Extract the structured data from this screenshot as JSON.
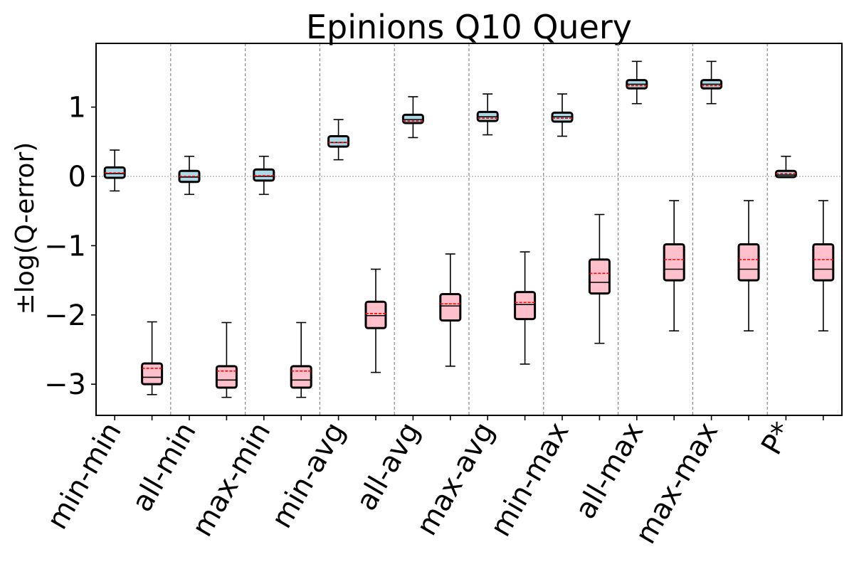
{
  "chart_data": {
    "type": "boxplot",
    "title": "Epinions Q10 Query",
    "xlabel": "",
    "ylabel": "±log(Q-error)",
    "ylim": [
      -3.45,
      1.92
    ],
    "yticks": [
      1,
      0,
      -1,
      -2,
      -3
    ],
    "ytick_labels": [
      "1",
      "0",
      "−1",
      "−2",
      "−3"
    ],
    "categories": [
      "min-min",
      "all-min",
      "max-min",
      "min-avg",
      "all-avg",
      "max-avg",
      "min-max",
      "all-max",
      "max-max",
      "P*"
    ],
    "reference_line_y": 0,
    "group_separators": true,
    "series": [
      {
        "color": "#add8e6",
        "stats": [
          {
            "whislo": -0.21,
            "q1": -0.02,
            "median": 0.04,
            "mean": 0.05,
            "q3": 0.13,
            "whishi": 0.38
          },
          {
            "whislo": -0.26,
            "q1": -0.08,
            "median": -0.01,
            "mean": 0.0,
            "q3": 0.08,
            "whishi": 0.29
          },
          {
            "whislo": -0.26,
            "q1": -0.06,
            "median": 0.0,
            "mean": 0.01,
            "q3": 0.1,
            "whishi": 0.29
          },
          {
            "whislo": 0.24,
            "q1": 0.43,
            "median": 0.49,
            "mean": 0.49,
            "q3": 0.58,
            "whishi": 0.82
          },
          {
            "whislo": 0.56,
            "q1": 0.77,
            "median": 0.82,
            "mean": 0.8,
            "q3": 0.89,
            "whishi": 1.15
          },
          {
            "whislo": 0.6,
            "q1": 0.8,
            "median": 0.86,
            "mean": 0.84,
            "q3": 0.93,
            "whishi": 1.19
          },
          {
            "whislo": 0.58,
            "q1": 0.79,
            "median": 0.86,
            "mean": 0.84,
            "q3": 0.92,
            "whishi": 1.19
          },
          {
            "whislo": 1.05,
            "q1": 1.27,
            "median": 1.33,
            "mean": 1.31,
            "q3": 1.39,
            "whishi": 1.66
          },
          {
            "whislo": 1.05,
            "q1": 1.27,
            "median": 1.33,
            "mean": 1.31,
            "q3": 1.39,
            "whishi": 1.66
          },
          {
            "whislo": -0.01,
            "q1": -0.01,
            "median": 0.02,
            "mean": 0.04,
            "q3": 0.08,
            "whishi": 0.29
          }
        ]
      },
      {
        "color": "#ffc0cb",
        "stats": [
          {
            "whislo": -3.15,
            "q1": -3.0,
            "median": -2.9,
            "mean": -2.77,
            "q3": -2.7,
            "whishi": -2.1
          },
          {
            "whislo": -3.19,
            "q1": -3.05,
            "median": -2.94,
            "mean": -2.81,
            "q3": -2.74,
            "whishi": -2.11
          },
          {
            "whislo": -3.19,
            "q1": -3.05,
            "median": -2.94,
            "mean": -2.81,
            "q3": -2.74,
            "whishi": -2.11
          },
          {
            "whislo": -2.83,
            "q1": -2.19,
            "median": -2.01,
            "mean": -1.98,
            "q3": -1.81,
            "whishi": -1.34
          },
          {
            "whislo": -2.74,
            "q1": -2.08,
            "median": -1.87,
            "mean": -1.84,
            "q3": -1.7,
            "whishi": -1.12
          },
          {
            "whislo": -2.71,
            "q1": -2.06,
            "median": -1.85,
            "mean": -1.82,
            "q3": -1.67,
            "whishi": -1.09
          },
          {
            "whislo": -2.41,
            "q1": -1.69,
            "median": -1.53,
            "mean": -1.4,
            "q3": -1.2,
            "whishi": -0.55
          },
          {
            "whislo": -2.23,
            "q1": -1.5,
            "median": -1.34,
            "mean": -1.2,
            "q3": -0.98,
            "whishi": -0.35
          },
          {
            "whislo": -2.23,
            "q1": -1.5,
            "median": -1.34,
            "mean": -1.2,
            "q3": -0.98,
            "whishi": -0.35
          },
          {
            "whislo": -2.23,
            "q1": -1.5,
            "median": -1.34,
            "mean": -1.2,
            "q3": -0.98,
            "whishi": -0.35
          }
        ]
      }
    ]
  }
}
